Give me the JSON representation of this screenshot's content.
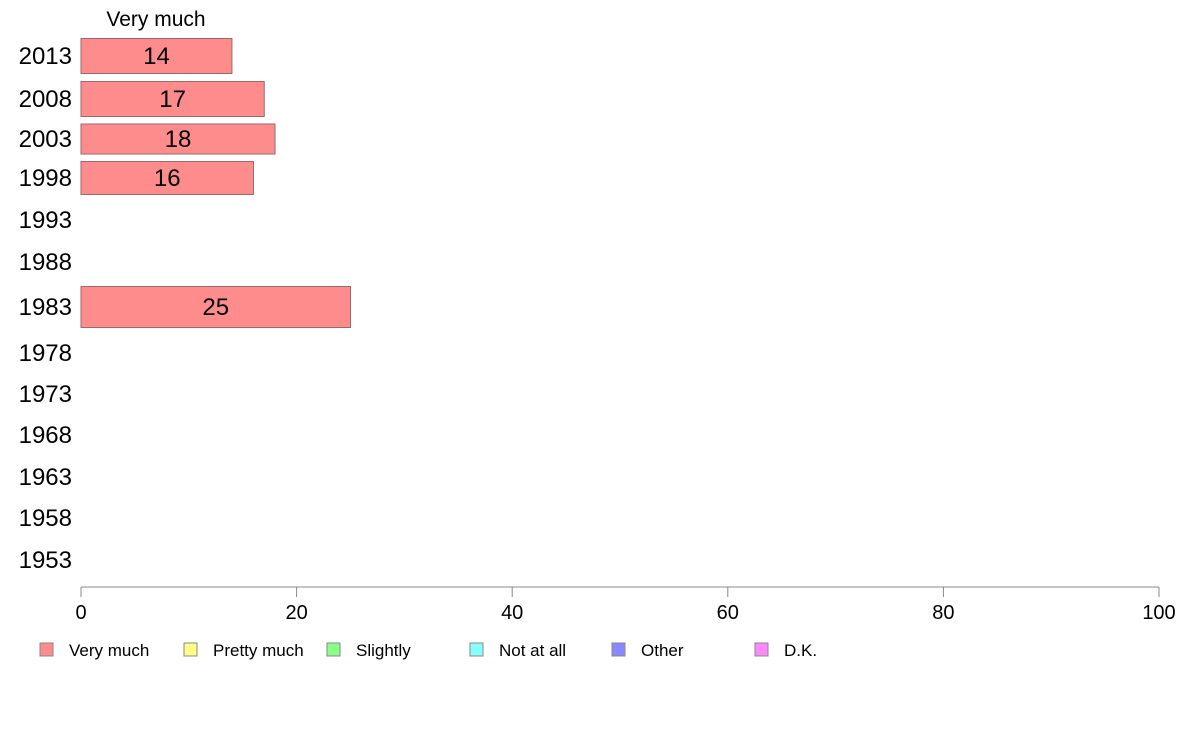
{
  "chart_data": {
    "type": "bar",
    "orientation": "horizontal",
    "stacked": true,
    "column_header": "Very much",
    "categories": [
      "2013",
      "2008",
      "2003",
      "1998",
      "1993",
      "1988",
      "1983",
      "1978",
      "1973",
      "1968",
      "1963",
      "1958",
      "1953"
    ],
    "series": [
      {
        "name": "Very much",
        "color": "#ff8c8c",
        "values": [
          14,
          17,
          18,
          16,
          null,
          null,
          25,
          null,
          null,
          null,
          null,
          null,
          null
        ]
      },
      {
        "name": "Pretty much",
        "color": "#ffff88",
        "values": [
          null,
          null,
          null,
          null,
          null,
          null,
          null,
          null,
          null,
          null,
          null,
          null,
          null
        ]
      },
      {
        "name": "Slightly",
        "color": "#88ff88",
        "values": [
          null,
          null,
          null,
          null,
          null,
          null,
          null,
          null,
          null,
          null,
          null,
          null,
          null
        ]
      },
      {
        "name": "Not at all",
        "color": "#88ffff",
        "values": [
          null,
          null,
          null,
          null,
          null,
          null,
          null,
          null,
          null,
          null,
          null,
          null,
          null
        ]
      },
      {
        "name": "Other",
        "color": "#8888ff",
        "values": [
          null,
          null,
          null,
          null,
          null,
          null,
          null,
          null,
          null,
          null,
          null,
          null,
          null
        ]
      },
      {
        "name": "D.K.",
        "color": "#ff88ff",
        "values": [
          null,
          null,
          null,
          null,
          null,
          null,
          null,
          null,
          null,
          null,
          null,
          null,
          null
        ]
      }
    ],
    "data_labels": [
      "14",
      "17",
      "18",
      "16",
      "",
      "",
      "25",
      "",
      "",
      "",
      "",
      "",
      ""
    ],
    "xlim": [
      0,
      100
    ],
    "xticks": [
      "0",
      "20",
      "40",
      "60",
      "80",
      "100"
    ],
    "grid": false,
    "legend_position": "bottom"
  }
}
